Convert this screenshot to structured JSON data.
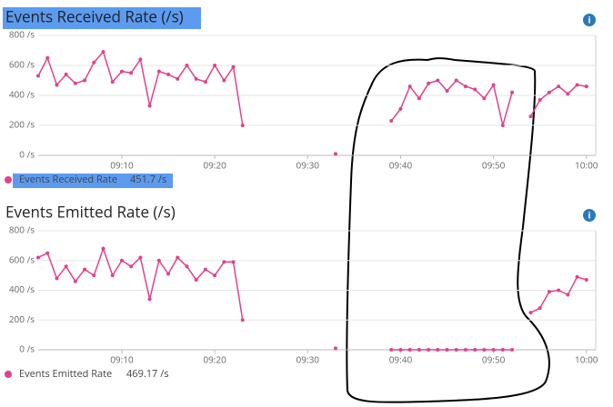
{
  "chart_data": [
    {
      "type": "line",
      "title": "Events Received Rate (/s)",
      "legend_value": "451.7 /s",
      "x": [
        "09:01",
        "09:02",
        "09:03",
        "09:04",
        "09:05",
        "09:06",
        "09:07",
        "09:08",
        "09:09",
        "09:10",
        "09:11",
        "09:12",
        "09:13",
        "09:14",
        "09:15",
        "09:16",
        "09:17",
        "09:18",
        "09:19",
        "09:20",
        "09:21",
        "09:22",
        "09:23",
        "09:24",
        "09:25",
        "09:26",
        "09:27",
        "09:28",
        "09:29",
        "09:30",
        "09:31",
        "09:32",
        "09:33",
        "09:34",
        "09:35",
        "09:36",
        "09:37",
        "09:38",
        "09:39",
        "09:40",
        "09:41",
        "09:42",
        "09:43",
        "09:44",
        "09:45",
        "09:46",
        "09:47",
        "09:48",
        "09:49",
        "09:50",
        "09:51",
        "09:52",
        "09:53",
        "09:54",
        "09:55",
        "09:56",
        "09:57",
        "09:58",
        "09:59",
        "10:00"
      ],
      "series": [
        {
          "name": "Events Received Rate",
          "color": "#e0428c",
          "values": [
            530,
            650,
            470,
            540,
            480,
            500,
            620,
            690,
            490,
            560,
            550,
            640,
            330,
            560,
            540,
            510,
            600,
            510,
            490,
            600,
            500,
            590,
            200,
            null,
            null,
            null,
            null,
            null,
            null,
            null,
            null,
            null,
            10,
            null,
            null,
            null,
            null,
            null,
            230,
            310,
            460,
            380,
            480,
            500,
            430,
            500,
            460,
            440,
            380,
            470,
            200,
            420,
            null,
            260,
            370,
            420,
            460,
            410,
            470,
            460
          ]
        }
      ],
      "xlim": [
        "09:01",
        "10:01"
      ],
      "xticks": [
        "09:10",
        "09:20",
        "09:30",
        "09:40",
        "09:50",
        "10:00"
      ],
      "ylim": [
        0,
        800
      ],
      "yticks": [
        {
          "value": 0,
          "label": "0 /s"
        },
        {
          "value": 200,
          "label": "200 /s"
        },
        {
          "value": 400,
          "label": "400 /s"
        },
        {
          "value": 600,
          "label": "600 /s"
        },
        {
          "value": 800,
          "label": "800 /s"
        }
      ],
      "grid": true
    },
    {
      "type": "line",
      "title": "Events Emitted Rate (/s)",
      "legend_value": "469.17 /s",
      "x": [
        "09:01",
        "09:02",
        "09:03",
        "09:04",
        "09:05",
        "09:06",
        "09:07",
        "09:08",
        "09:09",
        "09:10",
        "09:11",
        "09:12",
        "09:13",
        "09:14",
        "09:15",
        "09:16",
        "09:17",
        "09:18",
        "09:19",
        "09:20",
        "09:21",
        "09:22",
        "09:23",
        "09:24",
        "09:25",
        "09:26",
        "09:27",
        "09:28",
        "09:29",
        "09:30",
        "09:31",
        "09:32",
        "09:33",
        "09:34",
        "09:35",
        "09:36",
        "09:37",
        "09:38",
        "09:39",
        "09:40",
        "09:41",
        "09:42",
        "09:43",
        "09:44",
        "09:45",
        "09:46",
        "09:47",
        "09:48",
        "09:49",
        "09:50",
        "09:51",
        "09:52",
        "09:53",
        "09:54",
        "09:55",
        "09:56",
        "09:57",
        "09:58",
        "09:59",
        "10:00"
      ],
      "series": [
        {
          "name": "Events Emitted Rate",
          "color": "#e0428c",
          "values": [
            620,
            650,
            480,
            560,
            460,
            540,
            500,
            680,
            500,
            600,
            560,
            620,
            340,
            600,
            510,
            620,
            560,
            470,
            540,
            500,
            590,
            590,
            200,
            null,
            null,
            null,
            null,
            null,
            null,
            null,
            null,
            null,
            10,
            null,
            null,
            null,
            null,
            null,
            0,
            0,
            0,
            0,
            0,
            0,
            0,
            0,
            0,
            0,
            0,
            0,
            0,
            0,
            null,
            250,
            280,
            390,
            400,
            370,
            490,
            470
          ]
        }
      ],
      "xlim": [
        "09:01",
        "10:01"
      ],
      "xticks": [
        "09:10",
        "09:20",
        "09:30",
        "09:40",
        "09:50",
        "10:00"
      ],
      "ylim": [
        0,
        800
      ],
      "yticks": [
        {
          "value": 0,
          "label": "0 /s"
        },
        {
          "value": 200,
          "label": "200 /s"
        },
        {
          "value": 400,
          "label": "400 /s"
        },
        {
          "value": 600,
          "label": "600 /s"
        },
        {
          "value": 800,
          "label": "800 /s"
        }
      ],
      "grid": true
    }
  ]
}
